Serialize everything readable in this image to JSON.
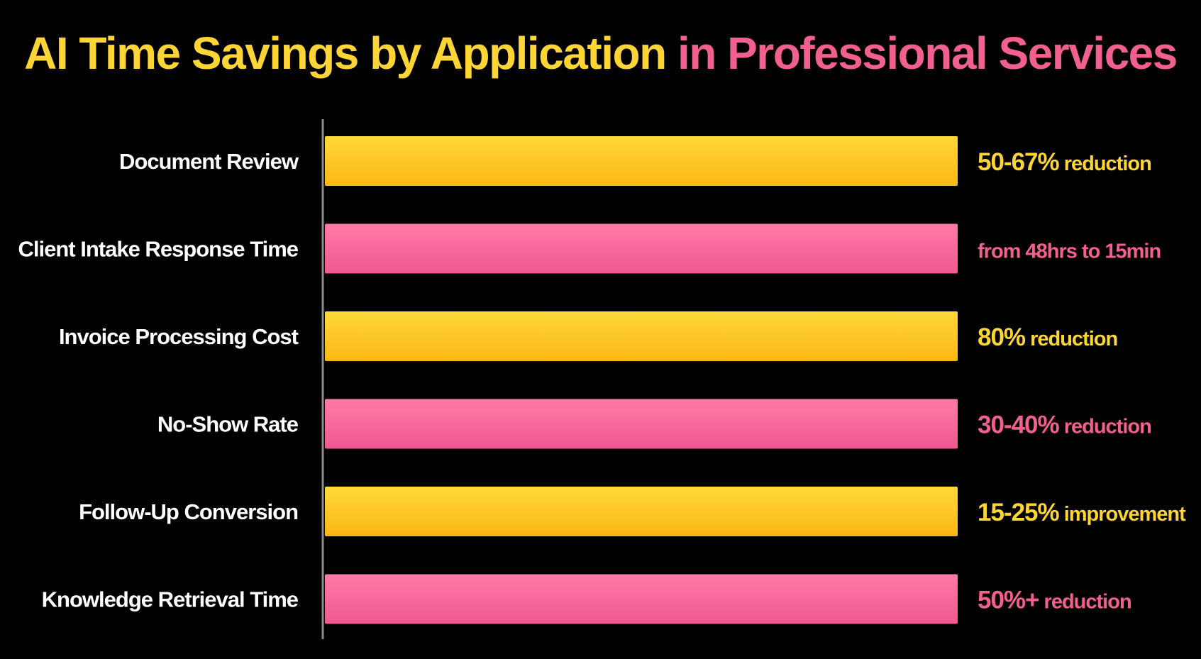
{
  "title": {
    "part1": "AI Time Savings by Application",
    "part2": "in Professional Services"
  },
  "colors": {
    "yellow": "#fdc623",
    "pink": "#f5689a",
    "yellow_text": "#fdd535",
    "pink_text": "#f2608f",
    "background": "#000000",
    "axis": "#8a8a8a"
  },
  "chart_data": {
    "type": "bar",
    "orientation": "horizontal",
    "title": "AI Time Savings by Application in Professional Services",
    "categories": [
      "Document Review",
      "Client Intake Response Time",
      "Invoice Processing Cost",
      "No-Show Rate",
      "Follow-Up Conversion",
      "Knowledge Retrieval Time"
    ],
    "values": [
      100,
      100,
      100,
      100,
      100,
      100
    ],
    "value_labels": [
      {
        "main": "50-67%",
        "suffix": " reduction"
      },
      {
        "main": "",
        "suffix": "from 48hrs to 15min"
      },
      {
        "main": "80%",
        "suffix": " reduction"
      },
      {
        "main": "30-40%",
        "suffix": " reduction"
      },
      {
        "main": "15-25%",
        "suffix": " improvement"
      },
      {
        "main": "50%+",
        "suffix": " reduction"
      }
    ],
    "bar_colors": [
      "yellow",
      "pink",
      "yellow",
      "pink",
      "yellow",
      "pink"
    ],
    "xlim": [
      0,
      100
    ],
    "grid": false,
    "legend": "none"
  }
}
